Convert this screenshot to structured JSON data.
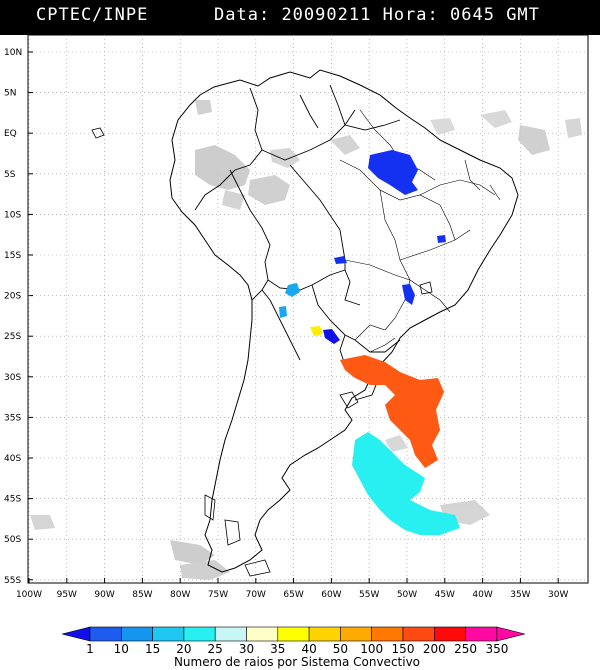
{
  "header": {
    "source": "CPTEC/INPE",
    "date_label": "Data:",
    "date": "20090211",
    "time_label": "Hora:",
    "time": "0645 GMT"
  },
  "map": {
    "lat_labels": [
      "10N",
      "5N",
      "EQ",
      "5S",
      "10S",
      "15S",
      "20S",
      "25S",
      "30S",
      "35S",
      "40S",
      "45S",
      "50S",
      "55S"
    ],
    "lon_labels": [
      "100W",
      "95W",
      "90W",
      "85W",
      "80W",
      "75W",
      "70W",
      "65W",
      "60W",
      "55W",
      "50W",
      "45W",
      "40W",
      "35W",
      "30W"
    ]
  },
  "legend": {
    "ticks": [
      "1",
      "10",
      "15",
      "20",
      "25",
      "30",
      "35",
      "40",
      "50",
      "100",
      "150",
      "200",
      "250",
      "350"
    ],
    "colors": [
      "#1010e8",
      "#1e5cf0",
      "#1496f0",
      "#1ec8f0",
      "#28f0f0",
      "#c8f5f5",
      "#ffffc8",
      "#ffff00",
      "#ffd200",
      "#ffaa00",
      "#ff7800",
      "#ff4a14",
      "#ff0a0a",
      "#ff0aa0"
    ],
    "caption": "Numero de raios por Sistema Convectivo"
  },
  "systems": {
    "colors": {
      "blue": "#1430f0",
      "dark_blue": "#1010e8",
      "sky": "#18a8f0",
      "cyan": "#28f0f0",
      "yellow": "#ffee00",
      "orange": "#ff5a14",
      "cloud_gray": "#c8c8c8"
    }
  }
}
